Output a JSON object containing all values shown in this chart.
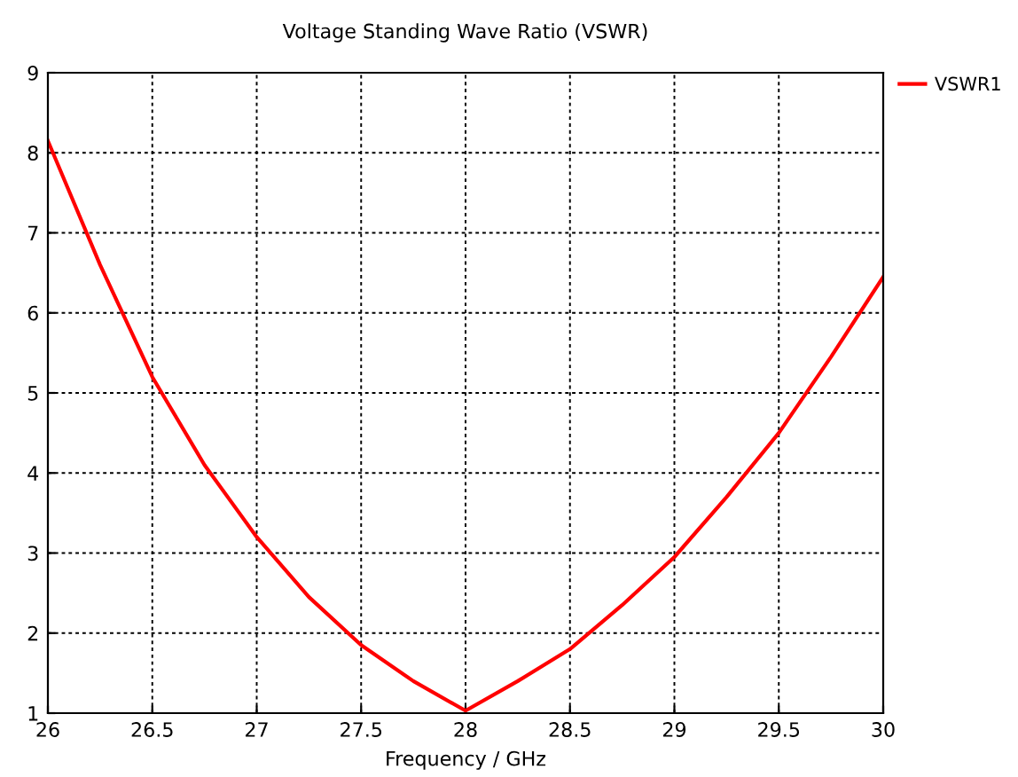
{
  "chart_data": {
    "type": "line",
    "title": "Voltage Standing Wave Ratio (VSWR)",
    "xlabel": "Frequency / GHz",
    "x": [
      26,
      26.25,
      26.5,
      26.75,
      27,
      27.25,
      27.5,
      27.75,
      28,
      28.25,
      28.5,
      28.75,
      29,
      29.25,
      29.5,
      29.75,
      30
    ],
    "series": [
      {
        "name": "VSWR1",
        "color": "#ff0000",
        "values": [
          8.15,
          6.6,
          5.2,
          4.1,
          3.2,
          2.45,
          1.85,
          1.4,
          1.03,
          1.4,
          1.8,
          2.35,
          2.95,
          3.7,
          4.5,
          5.45,
          6.45
        ]
      }
    ],
    "xlim": [
      26,
      30
    ],
    "xticks": [
      26,
      26.5,
      27,
      27.5,
      28,
      28.5,
      29,
      29.5,
      30
    ],
    "ylim": [
      1,
      9
    ],
    "yticks": [
      1,
      2,
      3,
      4,
      5,
      6,
      7,
      8,
      9
    ],
    "grid": true,
    "legend": "right",
    "line_style": "solid",
    "marker": "none"
  }
}
